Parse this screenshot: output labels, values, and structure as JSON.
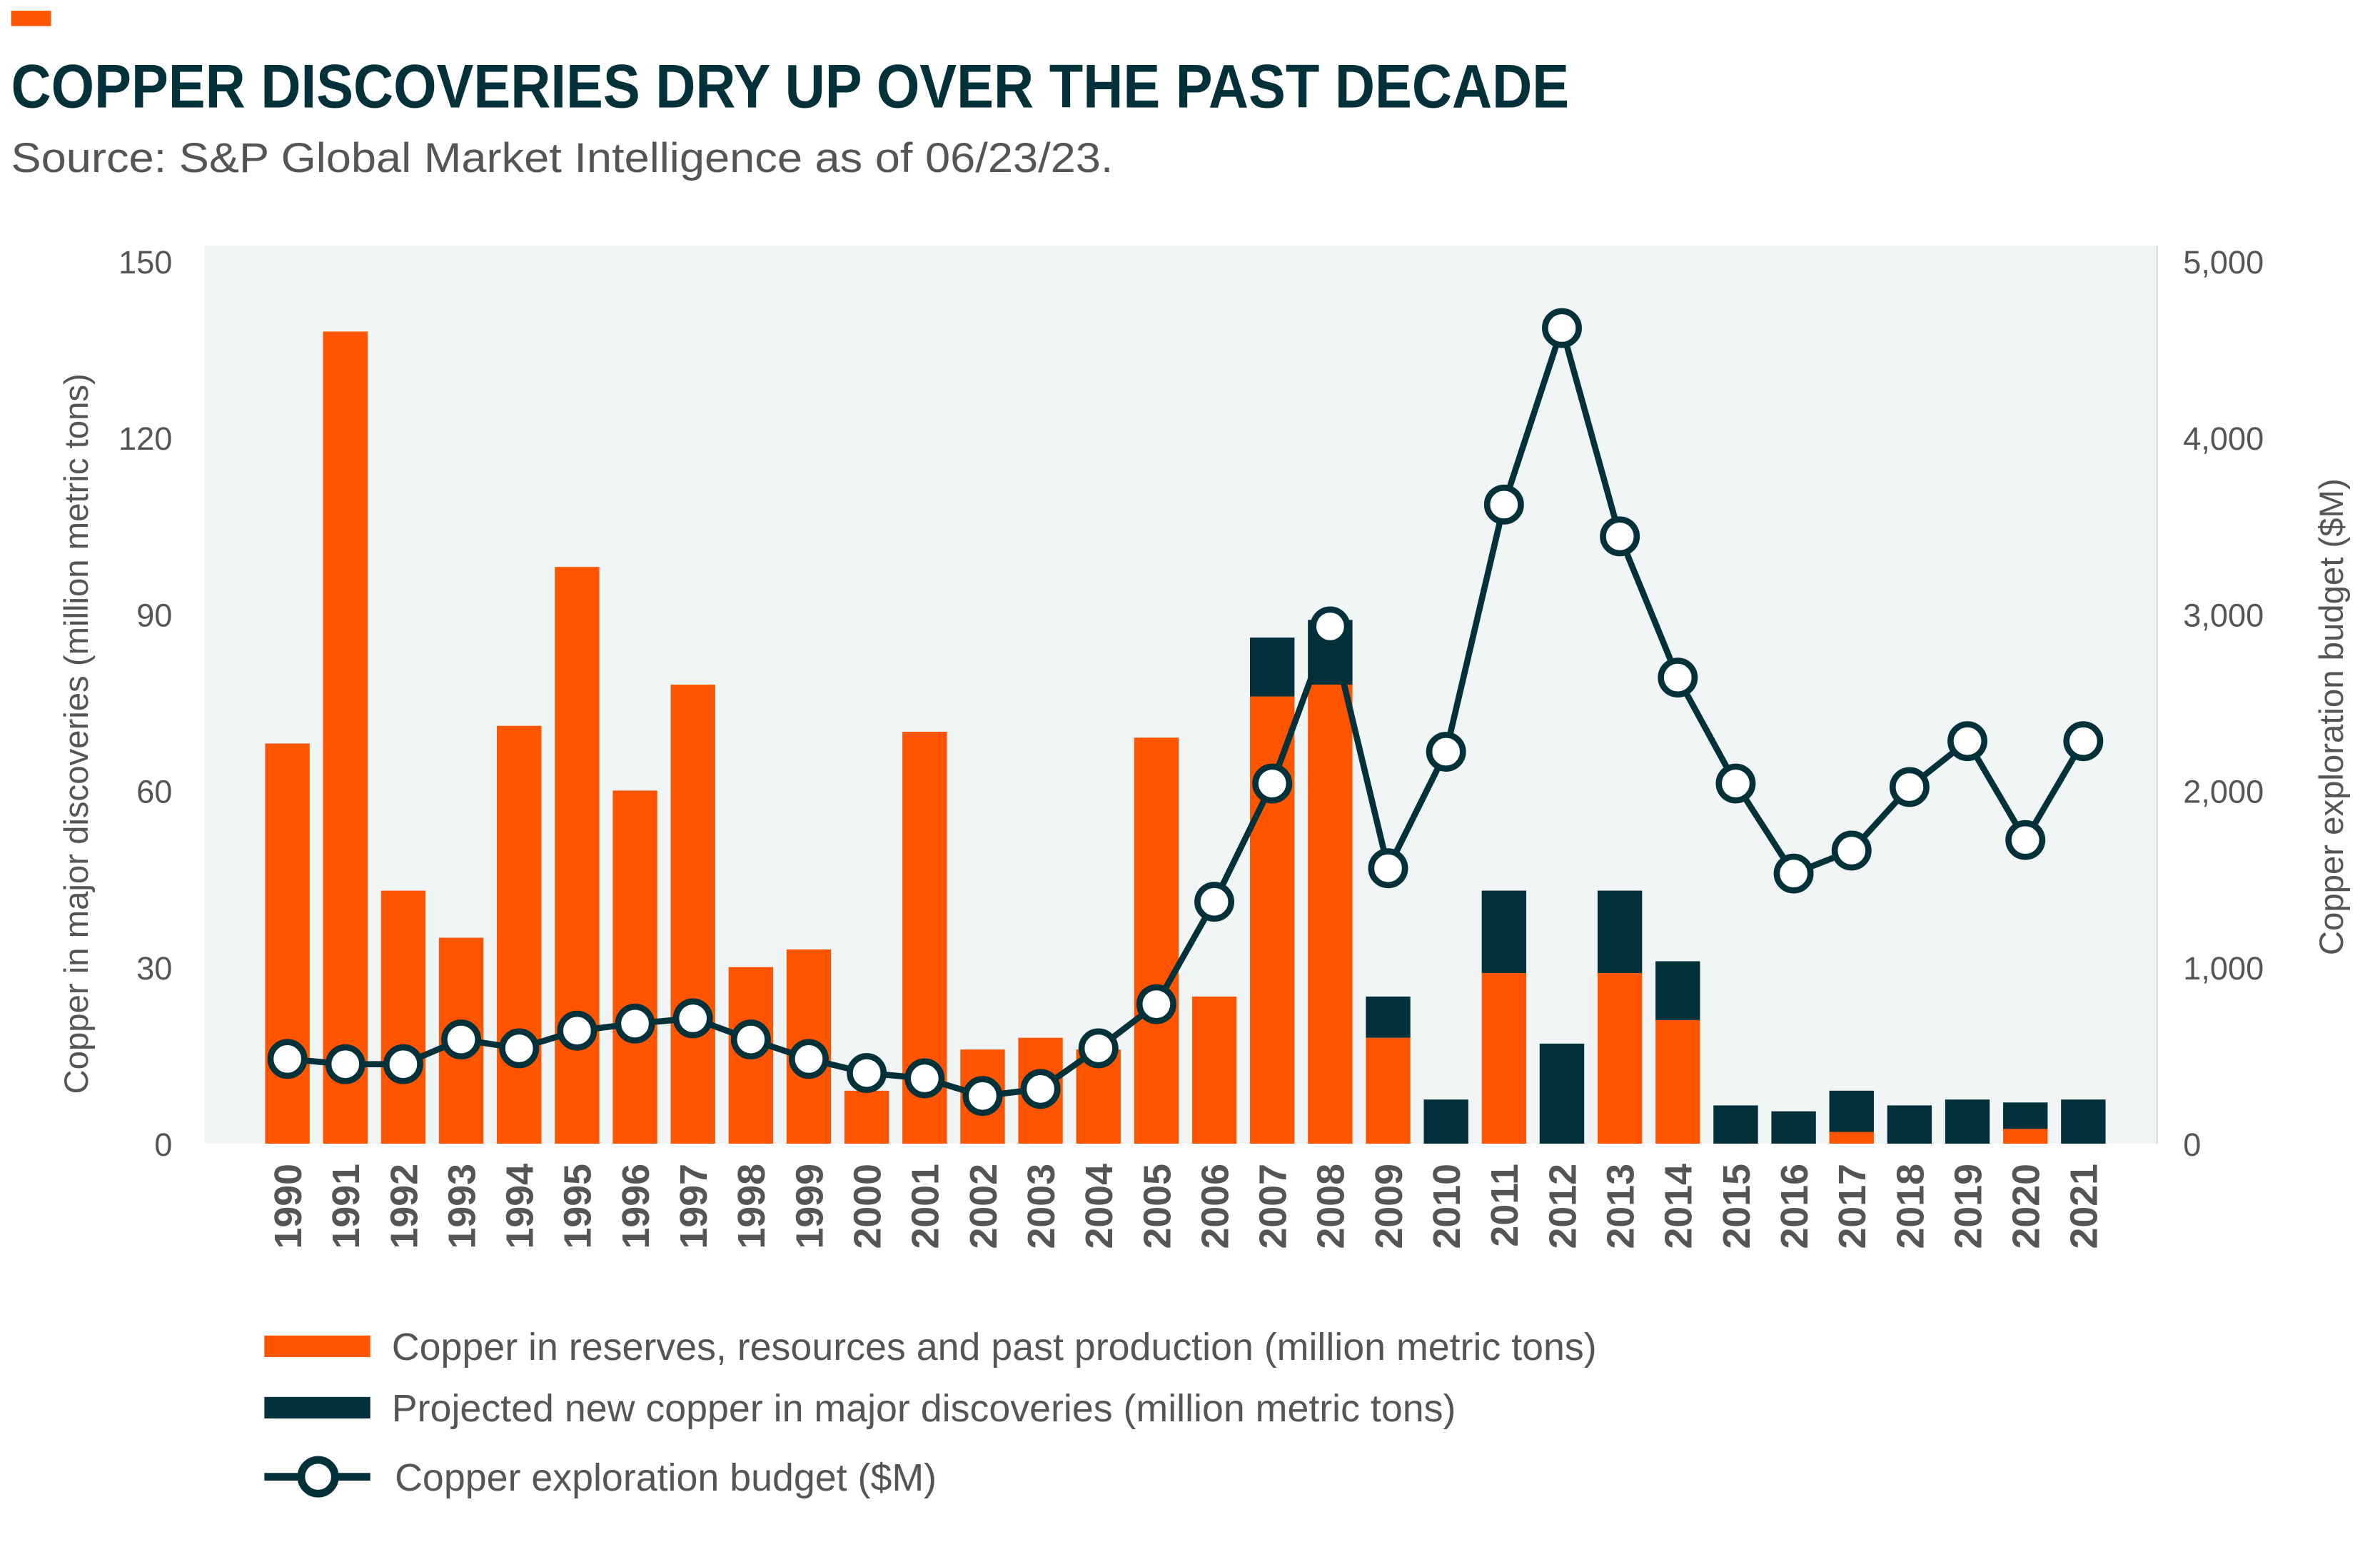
{
  "chart_data": {
    "type": "bar",
    "title": "COPPER DISCOVERIES DRY UP OVER THE PAST DECADE",
    "subtitle": "Source: S&P Global Market Intelligence as of 06/23/23.",
    "ylabel": "Copper in major discoveries (million metric tons)",
    "y2label": "Copper exploration budget ($M)",
    "ylim": [
      0,
      150
    ],
    "y2lim": [
      0,
      5000
    ],
    "yticks": [
      "0",
      "30",
      "60",
      "90",
      "120",
      "150"
    ],
    "y2ticks": [
      "0",
      "1,000",
      "2,000",
      "3,000",
      "4,000",
      "5,000"
    ],
    "categories": [
      "1990",
      "1991",
      "1992",
      "1993",
      "1994",
      "1995",
      "1996",
      "1997",
      "1998",
      "1999",
      "2000",
      "2001",
      "2002",
      "2003",
      "2004",
      "2005",
      "2006",
      "2007",
      "2008",
      "2009",
      "2010",
      "2011",
      "2012",
      "2013",
      "2014",
      "2015",
      "2016",
      "2017",
      "2018",
      "2019",
      "2020",
      "2021"
    ],
    "series": [
      {
        "name": "Copper in reserves, resources and past production (million metric tons)",
        "type": "stacked-bar",
        "color": "#ff5500",
        "values": [
          68,
          138,
          43,
          35,
          71,
          98,
          60,
          78,
          30,
          33,
          9,
          70,
          16,
          18,
          16,
          69,
          25,
          76,
          78,
          18,
          0,
          29,
          0,
          29,
          21,
          0,
          0,
          2,
          0,
          0,
          2.5,
          0
        ]
      },
      {
        "name": "Projected new copper in major discoveries (million metric tons)",
        "type": "stacked-bar",
        "color": "#02313a",
        "values": [
          0,
          0,
          0,
          0,
          0,
          0,
          0,
          0,
          0,
          0,
          0,
          0,
          0,
          0,
          0,
          0,
          0,
          10,
          11,
          7,
          7.5,
          14,
          17,
          14,
          10,
          6.5,
          5.5,
          7,
          6.5,
          7.5,
          4.5,
          7.5
        ]
      },
      {
        "name": "Copper exploration budget ($M)",
        "type": "line",
        "axis": "right",
        "color": "#02313a",
        "values": [
          480,
          450,
          450,
          590,
          540,
          640,
          680,
          710,
          590,
          480,
          400,
          370,
          270,
          310,
          540,
          790,
          1370,
          2040,
          2930,
          1560,
          2220,
          3620,
          4620,
          3440,
          2640,
          2040,
          1530,
          1660,
          2020,
          2280,
          1720,
          2280
        ]
      }
    ],
    "legend_position": "bottom-left",
    "grid": false
  }
}
